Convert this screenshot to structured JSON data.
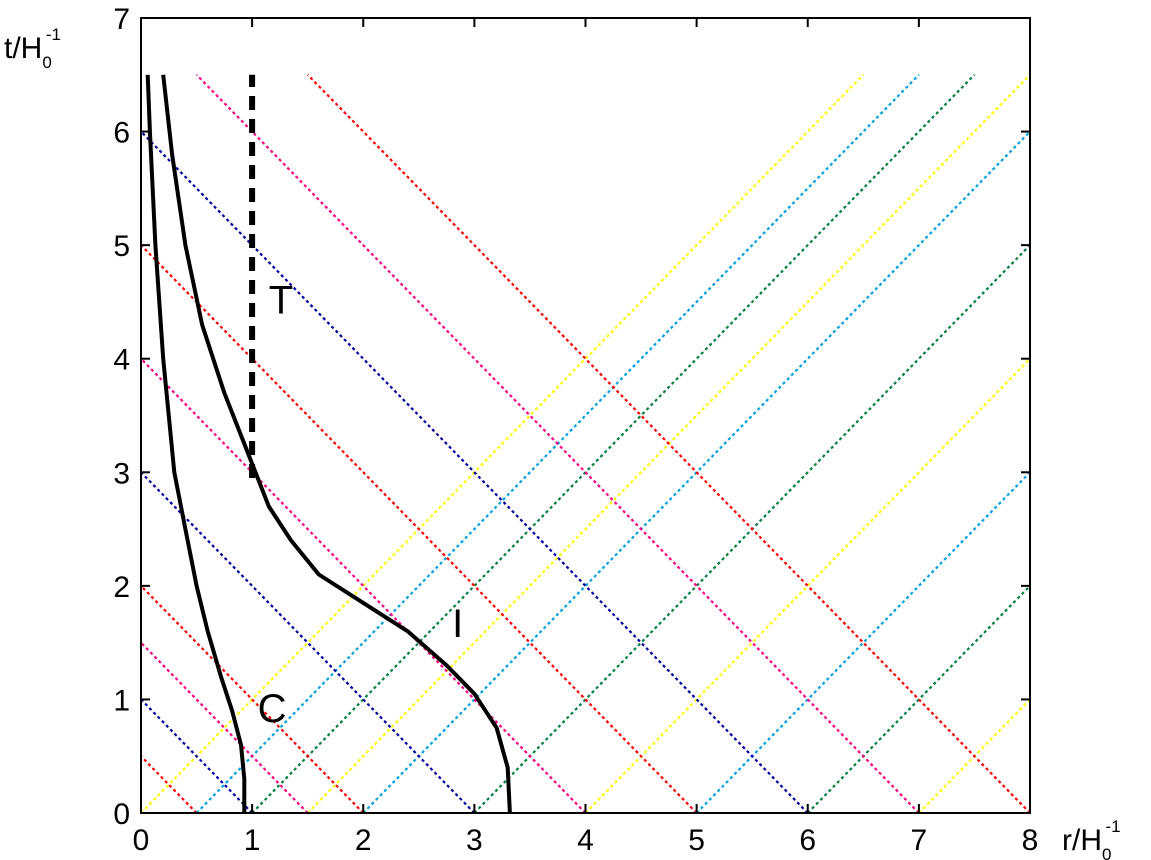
{
  "chart_data": {
    "type": "line",
    "title": "",
    "xlabel": {
      "main": "r/H",
      "sub": "0",
      "sup": "-1"
    },
    "ylabel": {
      "main": "t/H",
      "sub": "0",
      "sup": "-1"
    },
    "xlim": [
      0,
      8
    ],
    "ylim": [
      0,
      7
    ],
    "xticks": [
      "0",
      "1",
      "2",
      "3",
      "4",
      "5",
      "6",
      "7",
      "8"
    ],
    "yticks": [
      "0",
      "1",
      "2",
      "3",
      "4",
      "5",
      "6",
      "7"
    ],
    "grid": false,
    "legend": "none",
    "background_lines": {
      "colors": [
        "#ffff00",
        "#ff0080",
        "#00a0e0",
        "#ff0000",
        "#008040",
        "#0000a0"
      ],
      "t_max": 6.5,
      "starts": [
        0,
        0.5,
        1,
        1.5,
        2,
        3,
        4,
        5,
        6,
        7,
        8
      ]
    },
    "series": [
      {
        "name": "C",
        "color": "#000000",
        "style": "solid",
        "points": [
          [
            0.93,
            0
          ],
          [
            0.93,
            0.3
          ],
          [
            0.9,
            0.6
          ],
          [
            0.82,
            0.9
          ],
          [
            0.72,
            1.2
          ],
          [
            0.6,
            1.6
          ],
          [
            0.5,
            2.0
          ],
          [
            0.4,
            2.5
          ],
          [
            0.3,
            3.0
          ],
          [
            0.2,
            4.0
          ],
          [
            0.13,
            5.0
          ],
          [
            0.08,
            6.0
          ],
          [
            0.06,
            6.5
          ]
        ]
      },
      {
        "name": "I",
        "color": "#000000",
        "style": "solid",
        "points": [
          [
            3.32,
            0
          ],
          [
            3.3,
            0.4
          ],
          [
            3.2,
            0.75
          ],
          [
            3.0,
            1.05
          ],
          [
            2.75,
            1.3
          ],
          [
            2.4,
            1.6
          ],
          [
            2.0,
            1.85
          ],
          [
            1.6,
            2.1
          ],
          [
            1.35,
            2.4
          ],
          [
            1.15,
            2.7
          ],
          [
            0.95,
            3.2
          ],
          [
            0.75,
            3.7
          ],
          [
            0.55,
            4.3
          ],
          [
            0.4,
            5.0
          ],
          [
            0.28,
            5.8
          ],
          [
            0.2,
            6.5
          ]
        ]
      },
      {
        "name": "T",
        "color": "#000000",
        "style": "dashed",
        "points": [
          [
            1.0,
            2.95
          ],
          [
            1.0,
            6.5
          ]
        ]
      }
    ],
    "annotations": [
      {
        "text": "C",
        "x": 1.05,
        "y": 0.8
      },
      {
        "text": "I",
        "x": 2.8,
        "y": 1.55
      },
      {
        "text": "T",
        "x": 1.15,
        "y": 4.4
      }
    ]
  }
}
